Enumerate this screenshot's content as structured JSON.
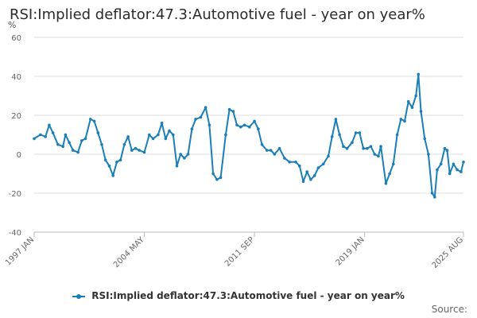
{
  "chart_data": {
    "type": "line",
    "title": "RSI:Implied deflator:47.3:Automotive fuel - year on year%",
    "ylabel": "%",
    "xlabel": "",
    "ylim": [
      -40,
      60
    ],
    "y_ticks": [
      -40,
      -20,
      0,
      20,
      40,
      60
    ],
    "x_tick_labels": [
      "1997 JAN",
      "2004 MAY",
      "2011 SEP",
      "2019 JAN",
      "2025 AUG"
    ],
    "x_range": [
      "1997-01",
      "2025-08"
    ],
    "grid": "horizontal",
    "legend_position": "bottom",
    "series": [
      {
        "name": "RSI:Implied deflator:47.3:Automotive fuel - year on year%",
        "color": "#1a7fb8",
        "points": [
          [
            "1997-01",
            8
          ],
          [
            "1997-06",
            10
          ],
          [
            "1997-10",
            9
          ],
          [
            "1998-01",
            15
          ],
          [
            "1998-04",
            11
          ],
          [
            "1998-08",
            5
          ],
          [
            "1998-12",
            4
          ],
          [
            "1999-02",
            10
          ],
          [
            "1999-05",
            6
          ],
          [
            "1999-08",
            2
          ],
          [
            "1999-12",
            1
          ],
          [
            "2000-03",
            7
          ],
          [
            "2000-06",
            8
          ],
          [
            "2000-10",
            18
          ],
          [
            "2001-01",
            17
          ],
          [
            "2001-04",
            11
          ],
          [
            "2001-07",
            5
          ],
          [
            "2001-10",
            -3
          ],
          [
            "2002-01",
            -6
          ],
          [
            "2002-04",
            -11
          ],
          [
            "2002-07",
            -4
          ],
          [
            "2002-10",
            -3
          ],
          [
            "2003-01",
            5
          ],
          [
            "2003-04",
            9
          ],
          [
            "2003-07",
            2
          ],
          [
            "2003-10",
            3
          ],
          [
            "2004-01",
            2
          ],
          [
            "2004-05",
            1
          ],
          [
            "2004-09",
            10
          ],
          [
            "2004-12",
            8
          ],
          [
            "2005-04",
            10
          ],
          [
            "2005-07",
            16
          ],
          [
            "2005-10",
            8
          ],
          [
            "2006-01",
            12
          ],
          [
            "2006-04",
            10
          ],
          [
            "2006-07",
            -6
          ],
          [
            "2006-10",
            0
          ],
          [
            "2007-01",
            -2
          ],
          [
            "2007-04",
            0
          ],
          [
            "2007-07",
            13
          ],
          [
            "2007-10",
            18
          ],
          [
            "2008-02",
            19
          ],
          [
            "2008-06",
            24
          ],
          [
            "2008-09",
            15
          ],
          [
            "2008-12",
            -10
          ],
          [
            "2009-03",
            -13
          ],
          [
            "2009-06",
            -12
          ],
          [
            "2009-10",
            10
          ],
          [
            "2010-01",
            23
          ],
          [
            "2010-04",
            22
          ],
          [
            "2010-07",
            15
          ],
          [
            "2010-10",
            14
          ],
          [
            "2011-01",
            15
          ],
          [
            "2011-05",
            14
          ],
          [
            "2011-09",
            17
          ],
          [
            "2011-12",
            13
          ],
          [
            "2012-03",
            5
          ],
          [
            "2012-07",
            2
          ],
          [
            "2012-10",
            2
          ],
          [
            "2013-01",
            0
          ],
          [
            "2013-05",
            3
          ],
          [
            "2013-09",
            -2
          ],
          [
            "2014-01",
            -4
          ],
          [
            "2014-06",
            -4
          ],
          [
            "2014-09",
            -6
          ],
          [
            "2014-12",
            -14
          ],
          [
            "2015-03",
            -9
          ],
          [
            "2015-06",
            -13
          ],
          [
            "2015-09",
            -11
          ],
          [
            "2015-12",
            -7
          ],
          [
            "2016-04",
            -5
          ],
          [
            "2016-08",
            -1
          ],
          [
            "2016-11",
            9
          ],
          [
            "2017-02",
            18
          ],
          [
            "2017-05",
            10
          ],
          [
            "2017-08",
            4
          ],
          [
            "2017-11",
            3
          ],
          [
            "2018-03",
            6
          ],
          [
            "2018-06",
            11
          ],
          [
            "2018-09",
            11
          ],
          [
            "2018-12",
            3
          ],
          [
            "2019-03",
            3
          ],
          [
            "2019-06",
            4
          ],
          [
            "2019-09",
            0
          ],
          [
            "2019-12",
            -1
          ],
          [
            "2020-02",
            4
          ],
          [
            "2020-06",
            -15
          ],
          [
            "2020-09",
            -10
          ],
          [
            "2020-12",
            -5
          ],
          [
            "2021-03",
            10
          ],
          [
            "2021-06",
            18
          ],
          [
            "2021-09",
            17
          ],
          [
            "2021-12",
            27
          ],
          [
            "2022-03",
            24
          ],
          [
            "2022-06",
            30
          ],
          [
            "2022-08",
            41
          ],
          [
            "2022-10",
            22
          ],
          [
            "2023-01",
            8
          ],
          [
            "2023-04",
            0
          ],
          [
            "2023-07",
            -20
          ],
          [
            "2023-09",
            -22
          ],
          [
            "2023-11",
            -8
          ],
          [
            "2024-02",
            -5
          ],
          [
            "2024-05",
            3
          ],
          [
            "2024-07",
            2
          ],
          [
            "2024-09",
            -10
          ],
          [
            "2024-12",
            -5
          ],
          [
            "2025-03",
            -8
          ],
          [
            "2025-06",
            -9
          ],
          [
            "2025-08",
            -4
          ]
        ]
      }
    ]
  },
  "legend": {
    "label": "RSI:Implied deflator:47.3:Automotive fuel - year on year%"
  },
  "footer": {
    "source_label": "Source:"
  }
}
